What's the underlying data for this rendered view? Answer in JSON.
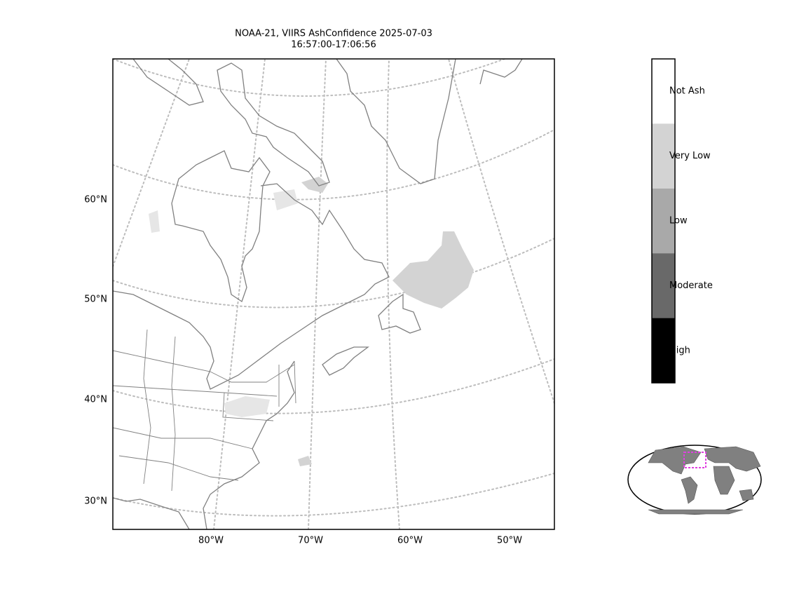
{
  "title": {
    "lines": [
      "NOAA-21, VIIRS AshConfidence 2025-07-03",
      "16:57:00-17:06:56"
    ]
  },
  "map": {
    "lat_labels": [
      "60°N",
      "50°N",
      "40°N",
      "30°N"
    ],
    "lon_labels": [
      "80°W",
      "70°W",
      "60°W",
      "50°W"
    ]
  },
  "legend": {
    "categories": [
      "Not Ash",
      "Very Low",
      "Low",
      "Moderate",
      "High"
    ],
    "colors": [
      "#ffffff",
      "#d3d3d3",
      "#a9a9a9",
      "#696969",
      "#000000"
    ]
  }
}
